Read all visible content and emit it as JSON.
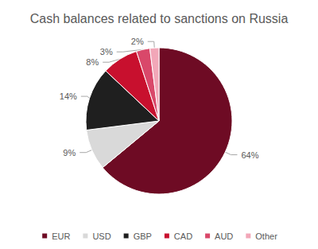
{
  "chart_data": {
    "type": "pie",
    "title": "Cash balances related to sanctions on Russia",
    "categories": [
      "EUR",
      "USD",
      "GBP",
      "CAD",
      "AUD",
      "Other"
    ],
    "values": [
      64,
      9,
      14,
      8,
      3,
      2
    ],
    "value_labels": [
      "64%",
      "9%",
      "14%",
      "8%",
      "3%",
      "2%"
    ],
    "colors": [
      "#6e0b24",
      "#d9d9d9",
      "#1f1f1f",
      "#c8102e",
      "#d9486a",
      "#f2a7b8"
    ],
    "data_labels": true,
    "legend": "bottom"
  }
}
